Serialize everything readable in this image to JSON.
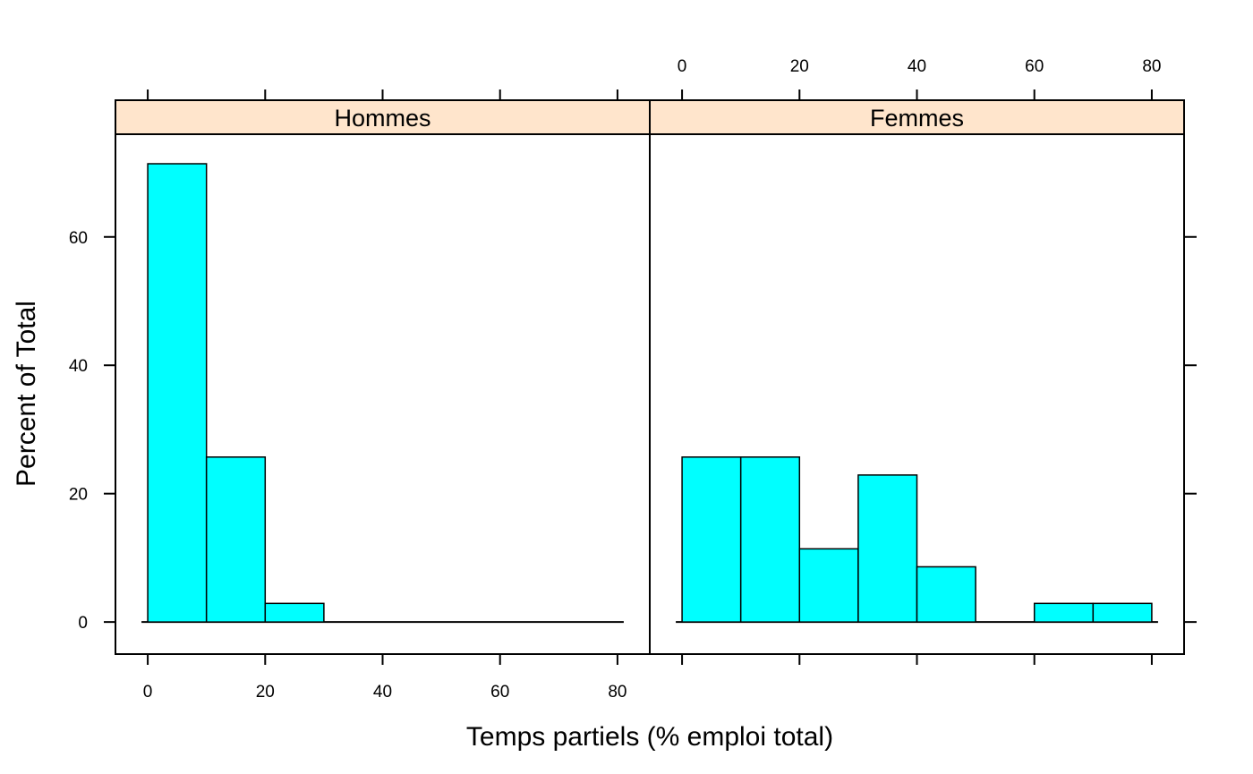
{
  "chart_data": {
    "type": "histogram",
    "xlabel": "Temps partiels (% emploi total)",
    "ylabel": "Percent of Total",
    "bin_edges": [
      0,
      10,
      20,
      30,
      40,
      50,
      60,
      70,
      80
    ],
    "x_ticks": [
      0,
      20,
      40,
      60,
      80
    ],
    "y_ticks": [
      0,
      20,
      40,
      60
    ],
    "xlim": [
      -5.5,
      85.5
    ],
    "ylim": [
      -5,
      76
    ],
    "panels": [
      {
        "name": "Hommes",
        "values": [
          71.4,
          25.7,
          2.9,
          0,
          0,
          0,
          0,
          0
        ]
      },
      {
        "name": "Femmes",
        "values": [
          25.7,
          25.7,
          11.4,
          22.9,
          8.6,
          0,
          2.9,
          2.9
        ]
      }
    ],
    "colors": {
      "bar_fill": "#00ffff",
      "bar_stroke": "#000000",
      "strip_fill": "#ffe5cc"
    }
  }
}
